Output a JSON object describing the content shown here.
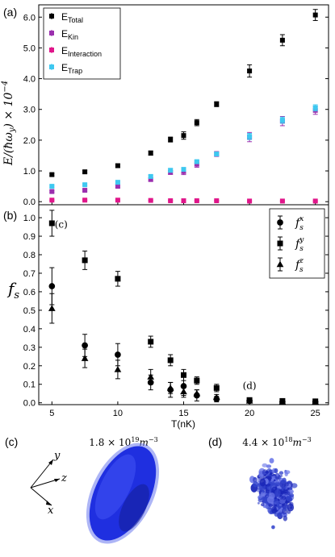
{
  "chart_data": [
    {
      "type": "scatter",
      "panel_label": "(a)",
      "ylabel": "E/(ħω_y) × 10^-4",
      "xlim": [
        4,
        26
      ],
      "ylim": [
        -0.1,
        6.4
      ],
      "yticks": [
        "0.0",
        "1.0",
        "2.0",
        "3.0",
        "4.0",
        "5.0",
        "6.0"
      ],
      "legend_position": "top-left",
      "series": [
        {
          "name": "E_Total",
          "legend_main": "E",
          "legend_sub": "Total",
          "marker": "square",
          "color": "#000000",
          "x": [
            5,
            7.5,
            10,
            12.5,
            14,
            15,
            16,
            17.5,
            20,
            22.5,
            25
          ],
          "y": [
            0.88,
            0.97,
            1.17,
            1.58,
            2.02,
            2.15,
            2.57,
            3.17,
            4.25,
            5.25,
            6.07
          ],
          "err": [
            0.04,
            0.04,
            0.05,
            0.07,
            0.08,
            0.12,
            0.1,
            0.08,
            0.2,
            0.18,
            0.18
          ]
        },
        {
          "name": "E_Kin",
          "legend_main": "E",
          "legend_sub": "Kin",
          "marker": "square",
          "color": "#9b2fae",
          "x": [
            5,
            7.5,
            10,
            12.5,
            14,
            15,
            16,
            17.5,
            20,
            22.5,
            25
          ],
          "y": [
            0.33,
            0.37,
            0.5,
            0.72,
            0.95,
            0.98,
            1.22,
            1.55,
            2.1,
            2.62,
            2.97
          ],
          "err": [
            0.03,
            0.03,
            0.04,
            0.05,
            0.06,
            0.1,
            0.1,
            0.08,
            0.15,
            0.15,
            0.13
          ]
        },
        {
          "name": "E_Interaction",
          "legend_main": "E",
          "legend_sub": "Interaction",
          "marker": "square",
          "color": "#e0168a",
          "x": [
            5,
            7.5,
            10,
            12.5,
            14,
            15,
            16,
            17.5,
            20,
            22.5,
            25
          ],
          "y": [
            0.05,
            0.05,
            0.05,
            0.04,
            0.03,
            0.03,
            0.03,
            0.03,
            0.02,
            0.02,
            0.02
          ],
          "err": [
            0.01,
            0.01,
            0.01,
            0.01,
            0.01,
            0.01,
            0.01,
            0.01,
            0.01,
            0.01,
            0.01
          ]
        },
        {
          "name": "E_Trap",
          "legend_main": "E",
          "legend_sub": "Trap",
          "marker": "square",
          "color": "#3ec8f0",
          "x": [
            5,
            7.5,
            10,
            12.5,
            14,
            15,
            16,
            17.5,
            20,
            22.5,
            25
          ],
          "y": [
            0.5,
            0.55,
            0.63,
            0.82,
            1.02,
            1.05,
            1.3,
            1.55,
            2.12,
            2.65,
            3.05
          ],
          "err": [
            0.03,
            0.03,
            0.03,
            0.04,
            0.05,
            0.05,
            0.05,
            0.05,
            0.1,
            0.1,
            0.1
          ]
        }
      ]
    },
    {
      "type": "scatter",
      "panel_label": "(b)",
      "ylabel": "f_s",
      "xlabel": "T(nK)",
      "xlim": [
        4,
        26
      ],
      "ylim": [
        -0.01,
        1.07
      ],
      "xticks": [
        "5",
        "10",
        "15",
        "20",
        "25"
      ],
      "yticks": [
        "0.0",
        "0.1",
        "0.2",
        "0.3",
        "0.4",
        "0.5",
        "0.6",
        "0.7",
        "0.8",
        "0.9",
        "1.0"
      ],
      "legend_position": "top-right",
      "annotations": [
        {
          "text": "(c)",
          "x": 5.7,
          "y": 0.945
        },
        {
          "text": "(d)",
          "x": 20,
          "y": 0.075
        }
      ],
      "series": [
        {
          "name": "f_s^x",
          "legend_main": "f",
          "legend_sub": "s",
          "legend_sup": "x",
          "marker": "circle",
          "color": "#000000",
          "x": [
            5,
            7.5,
            10,
            12.5,
            14,
            15,
            16,
            17.5,
            20,
            22.5,
            25
          ],
          "y": [
            0.63,
            0.31,
            0.26,
            0.11,
            0.07,
            0.09,
            0.04,
            0.02,
            0.01,
            0.005,
            0.005
          ],
          "err": [
            0.1,
            0.06,
            0.06,
            0.04,
            0.04,
            0.05,
            0.03,
            0.015,
            0.01,
            0.005,
            0.005
          ]
        },
        {
          "name": "f_s^y",
          "legend_main": "f",
          "legend_sub": "s",
          "legend_sup": "y",
          "marker": "square",
          "color": "#000000",
          "x": [
            5,
            7.5,
            10,
            12.5,
            14,
            15,
            16,
            17.5,
            20,
            22.5,
            25
          ],
          "y": [
            0.97,
            0.77,
            0.67,
            0.33,
            0.23,
            0.15,
            0.12,
            0.08,
            0.015,
            0.01,
            0.008
          ],
          "err": [
            0.07,
            0.05,
            0.04,
            0.03,
            0.03,
            0.03,
            0.02,
            0.02,
            0.01,
            0.008,
            0.006
          ]
        },
        {
          "name": "f_s^z",
          "legend_main": "f",
          "legend_sub": "s",
          "legend_sup": "z",
          "marker": "triangle",
          "color": "#000000",
          "x": [
            5,
            7.5,
            10,
            12.5,
            14,
            15,
            16,
            17.5,
            20,
            22.5,
            25
          ],
          "y": [
            0.51,
            0.24,
            0.18,
            0.14,
            0.08,
            0.06,
            0.05,
            0.03,
            0.01,
            0.005,
            0.005
          ],
          "err": [
            0.08,
            0.05,
            0.05,
            0.04,
            0.03,
            0.03,
            0.02,
            0.015,
            0.008,
            0.004,
            0.004
          ]
        }
      ]
    }
  ],
  "panel_c": {
    "label": "(c)",
    "density_label": "1.8 × 10^19 m^-3",
    "density_mantissa": "1.8 × 10",
    "density_exp": "19",
    "density_unit": "m",
    "density_unit_exp": "−3",
    "axes": {
      "y": "y",
      "z": "z",
      "x": "x"
    },
    "color": "#2233dd"
  },
  "panel_d": {
    "label": "(d)",
    "density_label": "4.4 × 10^18 m^-3",
    "density_mantissa": "4.4 × 10",
    "density_exp": "18",
    "density_unit": "m",
    "density_unit_exp": "−3",
    "color": "#3344cc"
  }
}
